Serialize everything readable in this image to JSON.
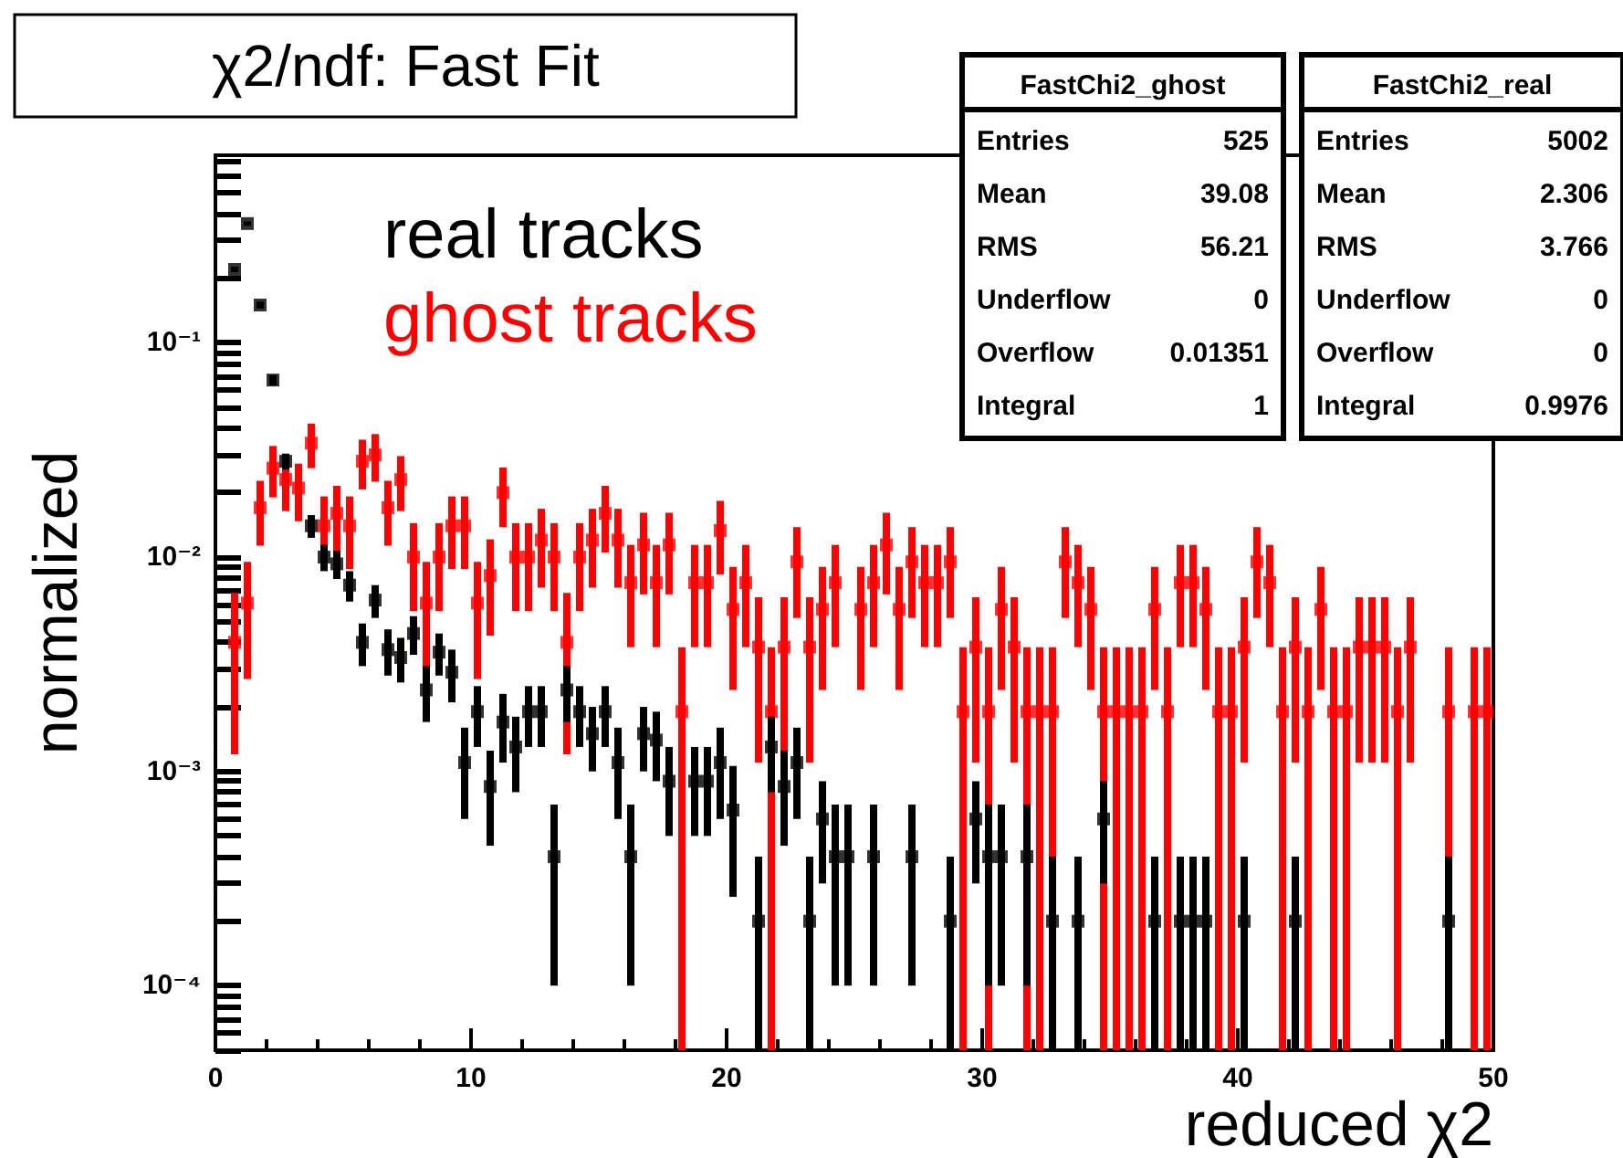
{
  "chart_data": {
    "type": "scatter",
    "title": "χ2/ndf: Fast Fit",
    "xlabel": "reduced χ2",
    "ylabel": "normalized",
    "xlim": [
      0,
      50
    ],
    "xticks": [
      0,
      10,
      20,
      30,
      40,
      50
    ],
    "ylim": [
      5e-05,
      0.75
    ],
    "yticks": [
      {
        "value": 5e-05,
        "label": null
      },
      {
        "value": 6e-05,
        "label": null
      },
      {
        "value": 7e-05,
        "label": null
      },
      {
        "value": 8e-05,
        "label": null
      },
      {
        "value": 9e-05,
        "label": null
      },
      {
        "value": 0.0001,
        "label": "10⁻⁴"
      },
      {
        "value": 0.0002,
        "label": null
      },
      {
        "value": 0.0003,
        "label": null
      },
      {
        "value": 0.0004,
        "label": null
      },
      {
        "value": 0.0005,
        "label": null
      },
      {
        "value": 0.0006,
        "label": null
      },
      {
        "value": 0.0007,
        "label": null
      },
      {
        "value": 0.0008,
        "label": null
      },
      {
        "value": 0.0009,
        "label": null
      },
      {
        "value": 0.001,
        "label": "10⁻³"
      },
      {
        "value": 0.002,
        "label": null
      },
      {
        "value": 0.003,
        "label": null
      },
      {
        "value": 0.004,
        "label": null
      },
      {
        "value": 0.005,
        "label": null
      },
      {
        "value": 0.006,
        "label": null
      },
      {
        "value": 0.007,
        "label": null
      },
      {
        "value": 0.008,
        "label": null
      },
      {
        "value": 0.009,
        "label": null
      },
      {
        "value": 0.01,
        "label": "10⁻²"
      },
      {
        "value": 0.02,
        "label": null
      },
      {
        "value": 0.03,
        "label": null
      },
      {
        "value": 0.04,
        "label": null
      },
      {
        "value": 0.05,
        "label": null
      },
      {
        "value": 0.06,
        "label": null
      },
      {
        "value": 0.07,
        "label": null
      },
      {
        "value": 0.08,
        "label": null
      },
      {
        "value": 0.09,
        "label": null
      },
      {
        "value": 0.1,
        "label": "10⁻¹"
      },
      {
        "value": 0.2,
        "label": null
      },
      {
        "value": 0.3,
        "label": null
      },
      {
        "value": 0.4,
        "label": null
      },
      {
        "value": 0.5,
        "label": null
      },
      {
        "value": 0.6,
        "label": null
      },
      {
        "value": 0.7,
        "label": null
      }
    ],
    "log": "y",
    "grid": false,
    "legend": "top left",
    "marker": "square",
    "annotations": [
      "FastChi2_ghost\nEntries 525\nMean 39.08\nRMS 56.21\nUnderflow 0\nOverflow 0.01351\nIntegral 1",
      "FastChi2_real\nEntries 5002\nMean 2.306\nRMS 3.766\nUnderflow 0\nOverflow 0\nIntegral 0.9976"
    ],
    "series": [
      {
        "name": "real tracks",
        "color": "#000000",
        "x": [
          0.75,
          1.25,
          1.75,
          2.25,
          2.75,
          3.75,
          4.25,
          4.75,
          5.25,
          5.75,
          6.25,
          6.75,
          7.25,
          7.75,
          8.25,
          8.75,
          9.25,
          9.75,
          10.25,
          10.75,
          11.25,
          11.75,
          12.25,
          12.75,
          13.25,
          13.75,
          14.25,
          14.75,
          15.25,
          15.75,
          16.25,
          16.75,
          17.25,
          17.75,
          18.75,
          19.25,
          19.75,
          20.25,
          21.25,
          21.75,
          22.25,
          22.75,
          23.25,
          23.75,
          24.25,
          24.75,
          25.75,
          27.25,
          28.75,
          29.75,
          30.25,
          30.75,
          31.75,
          32.75,
          33.75,
          34.75,
          36.75,
          37.75,
          38.25,
          38.75,
          40.25,
          42.25,
          48.25
        ],
        "values": [
          0.22,
          0.36,
          0.15,
          0.067,
          0.028,
          0.014,
          0.01,
          0.0093,
          0.0074,
          0.004,
          0.0063,
          0.0037,
          0.0034,
          0.0044,
          0.0024,
          0.0036,
          0.0029,
          0.0011,
          0.0019,
          0.00085,
          0.0017,
          0.0013,
          0.0019,
          0.0019,
          0.0004,
          0.0024,
          0.0019,
          0.0015,
          0.0019,
          0.0011,
          0.0004,
          0.0015,
          0.0014,
          0.0009,
          0.0009,
          0.0009,
          0.0011,
          0.00066,
          0.0002,
          0.0013,
          0.00085,
          0.0011,
          0.0002,
          0.0006,
          0.0004,
          0.0004,
          0.0004,
          0.0004,
          0.0002,
          0.0006,
          0.0004,
          0.0004,
          0.0004,
          0.0002,
          0.0002,
          0.0006,
          0.0002,
          0.0002,
          0.0002,
          0.0002,
          0.0002,
          0.0002,
          0.0002
        ],
        "errors": [
          0.0066,
          0.0085,
          0.0055,
          0.0037,
          0.0024,
          0.0017,
          0.0014,
          0.0014,
          0.0012,
          0.0009,
          0.0011,
          0.0009,
          0.0008,
          0.0009,
          0.0007,
          0.0008,
          0.0008,
          0.0005,
          0.0006,
          0.0004,
          0.0006,
          0.0005,
          0.0006,
          0.0006,
          0.0003,
          0.0007,
          0.0006,
          0.0005,
          0.0006,
          0.0005,
          0.0003,
          0.0005,
          0.0005,
          0.0004,
          0.0004,
          0.0004,
          0.0005,
          0.0004,
          [
            5e-05,
            0.0004
          ],
          0.0005,
          0.0004,
          0.0005,
          [
            5e-05,
            0.0004
          ],
          0.0003,
          0.0003,
          0.0003,
          0.0003,
          0.0003,
          [
            5e-05,
            0.0004
          ],
          0.0003,
          0.0003,
          0.0003,
          0.0003,
          [
            5e-05,
            0.0004
          ],
          [
            5e-05,
            0.0004
          ],
          0.0003,
          [
            5e-05,
            0.0004
          ],
          [
            5e-05,
            0.0004
          ],
          [
            5e-05,
            0.0004
          ],
          [
            5e-05,
            0.0004
          ],
          [
            5e-05,
            0.0004
          ],
          [
            5e-05,
            0.0004
          ],
          [
            5e-05,
            0.0004
          ]
        ]
      },
      {
        "name": "ghost tracks",
        "color": "#ff0000",
        "x": [
          0.75,
          1.25,
          1.75,
          2.25,
          2.75,
          3.25,
          3.75,
          4.25,
          4.75,
          5.25,
          5.75,
          6.25,
          6.75,
          7.25,
          7.75,
          8.25,
          8.75,
          9.25,
          9.75,
          10.25,
          10.75,
          11.25,
          11.75,
          12.25,
          12.75,
          13.25,
          13.75,
          14.25,
          14.75,
          15.25,
          15.75,
          16.25,
          16.75,
          17.25,
          17.75,
          18.25,
          18.75,
          19.25,
          19.75,
          20.25,
          20.75,
          21.25,
          21.75,
          22.25,
          22.75,
          23.25,
          23.75,
          24.25,
          25.25,
          25.75,
          26.25,
          26.75,
          27.25,
          27.75,
          28.25,
          28.75,
          29.25,
          29.75,
          30.25,
          30.75,
          31.25,
          31.75,
          32.25,
          32.75,
          33.25,
          33.75,
          34.25,
          34.75,
          35.25,
          35.75,
          36.25,
          36.75,
          37.25,
          37.75,
          38.25,
          38.75,
          39.25,
          39.75,
          40.25,
          40.75,
          41.25,
          41.75,
          42.25,
          42.75,
          43.25,
          43.75,
          44.25,
          44.75,
          45.25,
          45.75,
          46.25,
          46.75,
          48.25,
          49.25,
          49.75
        ],
        "values": [
          0.004,
          0.0061,
          0.017,
          0.026,
          0.023,
          0.021,
          0.034,
          0.014,
          0.016,
          0.014,
          0.028,
          0.03,
          0.017,
          0.023,
          0.01,
          0.0061,
          0.01,
          0.014,
          0.014,
          0.0061,
          0.0082,
          0.02,
          0.01,
          0.01,
          0.012,
          0.01,
          0.004,
          0.01,
          0.012,
          0.016,
          0.012,
          0.0076,
          0.0114,
          0.0076,
          0.0114,
          0.0019,
          0.0076,
          0.0076,
          0.0133,
          0.0057,
          0.0076,
          0.0038,
          0.0019,
          0.0038,
          0.0095,
          0.0038,
          0.0057,
          0.0076,
          0.0057,
          0.0076,
          0.0114,
          0.0057,
          0.0095,
          0.0076,
          0.0076,
          0.0095,
          0.0019,
          0.0038,
          0.0019,
          0.0057,
          0.0038,
          0.0019,
          0.0019,
          0.0019,
          0.0095,
          0.0076,
          0.0057,
          0.0019,
          0.0019,
          0.0019,
          0.0019,
          0.0057,
          0.0019,
          0.0076,
          0.0076,
          0.0057,
          0.0019,
          0.0019,
          0.0038,
          0.0095,
          0.0076,
          0.0019,
          0.0038,
          0.0019,
          0.0057,
          0.0019,
          0.0019,
          0.0038,
          0.0038,
          0.0038,
          0.0019,
          0.0038,
          0.0019,
          0.0019,
          0.0019
        ],
        "errors": [
          0.0028,
          0.0034,
          0.0057,
          0.007,
          0.0066,
          0.0063,
          0.008,
          0.0052,
          0.0055,
          0.0052,
          0.0073,
          0.0075,
          0.0057,
          0.0066,
          0.0044,
          0.0034,
          0.0044,
          0.0052,
          0.0052,
          0.0034,
          0.0039,
          0.0062,
          0.0044,
          0.0044,
          0.0048,
          0.0044,
          0.0028,
          0.0044,
          0.0048,
          0.0055,
          0.0048,
          0.0038,
          0.0047,
          0.0038,
          0.0047,
          [
            5e-05,
            0.0038
          ],
          0.0038,
          0.0038,
          0.005,
          0.0033,
          0.0038,
          0.0027,
          [
            5e-05,
            0.0038
          ],
          0.0027,
          0.0043,
          0.0027,
          0.0033,
          0.0038,
          0.0033,
          0.0038,
          0.0047,
          0.0033,
          0.0043,
          0.0038,
          0.0038,
          0.0043,
          [
            5e-05,
            0.0038
          ],
          0.0027,
          [
            5e-05,
            0.0038
          ],
          0.0033,
          0.0027,
          [
            5e-05,
            0.0038
          ],
          [
            5e-05,
            0.0038
          ],
          [
            5e-05,
            0.0038
          ],
          0.0043,
          0.0038,
          0.0033,
          [
            5e-05,
            0.0038
          ],
          [
            5e-05,
            0.0038
          ],
          [
            5e-05,
            0.0038
          ],
          [
            5e-05,
            0.0038
          ],
          0.0033,
          [
            5e-05,
            0.0038
          ],
          0.0038,
          0.0038,
          0.0033,
          [
            5e-05,
            0.0038
          ],
          [
            5e-05,
            0.0038
          ],
          0.0027,
          0.0043,
          0.0038,
          [
            5e-05,
            0.0038
          ],
          0.0027,
          [
            5e-05,
            0.0038
          ],
          0.0033,
          [
            5e-05,
            0.0038
          ],
          [
            5e-05,
            0.0038
          ],
          0.0027,
          0.0027,
          0.0027,
          [
            5e-05,
            0.0038
          ],
          0.0027,
          [
            5e-05,
            0.0038
          ],
          [
            5e-05,
            0.0038
          ],
          [
            5e-05,
            0.0038
          ]
        ]
      }
    ]
  }
}
